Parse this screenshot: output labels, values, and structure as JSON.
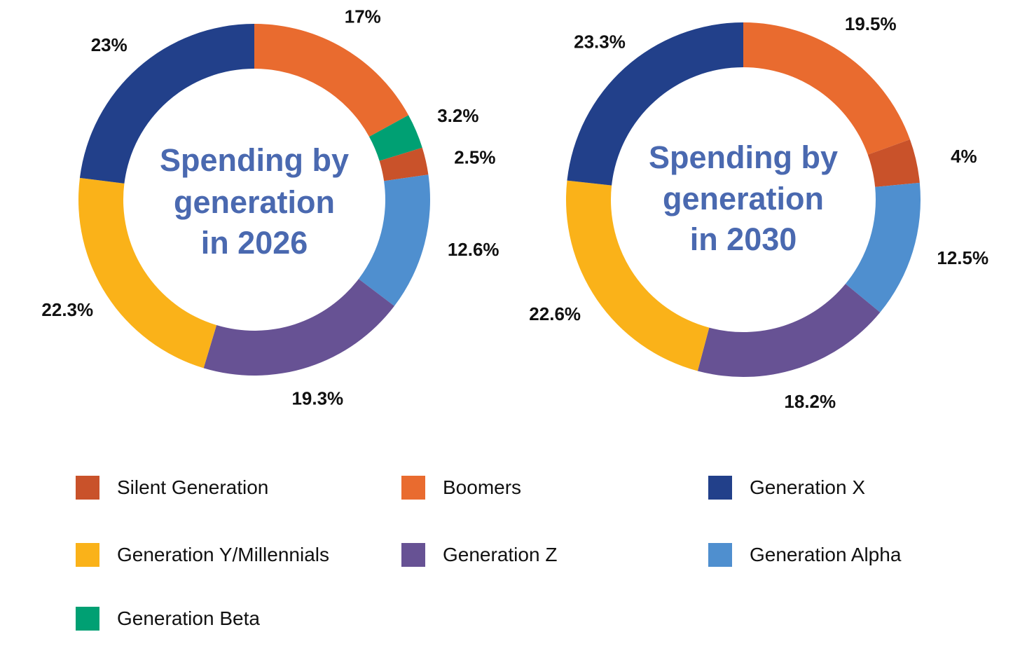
{
  "colors": {
    "silent": "#c9522a",
    "boomers": "#e96b2f",
    "genx": "#22408a",
    "geny": "#fab219",
    "genz": "#675294",
    "alpha": "#4f8fcf",
    "beta": "#00a073",
    "title": "#4a69b0"
  },
  "legend": [
    {
      "key": "silent",
      "label": "Silent Generation"
    },
    {
      "key": "boomers",
      "label": "Boomers"
    },
    {
      "key": "genx",
      "label": "Generation X"
    },
    {
      "key": "geny",
      "label": "Generation Y/Millennials"
    },
    {
      "key": "genz",
      "label": "Generation Z"
    },
    {
      "key": "alpha",
      "label": "Generation Alpha"
    },
    {
      "key": "beta",
      "label": "Generation Beta"
    }
  ],
  "chart_data": [
    {
      "type": "pie",
      "title": [
        "Spending by",
        "generation",
        "in 2026"
      ],
      "slices": [
        {
          "key": "boomers",
          "value": 17,
          "label": "17%"
        },
        {
          "key": "beta",
          "value": 3.2,
          "label": "3.2%"
        },
        {
          "key": "silent",
          "value": 2.5,
          "label": "2.5%"
        },
        {
          "key": "alpha",
          "value": 12.6,
          "label": "12.6%"
        },
        {
          "key": "genz",
          "value": 19.3,
          "label": "19.3%"
        },
        {
          "key": "geny",
          "value": 22.3,
          "label": "22.3%"
        },
        {
          "key": "genx",
          "value": 23,
          "label": "23%"
        }
      ]
    },
    {
      "type": "pie",
      "title": [
        "Spending by",
        "generation",
        "in 2030"
      ],
      "slices": [
        {
          "key": "boomers",
          "value": 19.5,
          "label": "19.5%"
        },
        {
          "key": "silent",
          "value": 4,
          "label": "4%"
        },
        {
          "key": "alpha",
          "value": 12.5,
          "label": "12.5%"
        },
        {
          "key": "genz",
          "value": 18.2,
          "label": "18.2%"
        },
        {
          "key": "geny",
          "value": 22.6,
          "label": "22.6%"
        },
        {
          "key": "genx",
          "value": 23.3,
          "label": "23.3%"
        }
      ]
    }
  ]
}
